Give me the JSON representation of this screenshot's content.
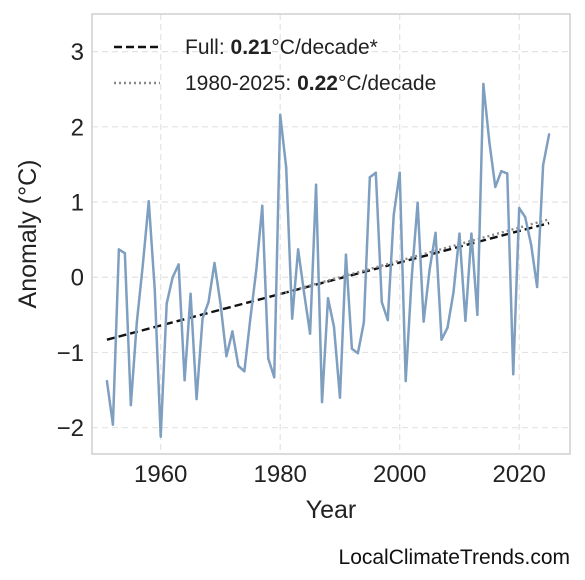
{
  "chart_data": {
    "type": "line",
    "xlabel": "Year",
    "ylabel": "Anomaly (°C)",
    "xlim": [
      1948.5,
      2028.5
    ],
    "ylim": [
      -2.35,
      3.5
    ],
    "xticks": [
      1960,
      1980,
      2000,
      2020
    ],
    "xtick_labels": [
      "1960",
      "1980",
      "2000",
      "2020"
    ],
    "yticks": [
      -2,
      -1,
      0,
      1,
      2,
      3
    ],
    "ytick_labels": [
      "−2",
      "−1",
      "0",
      "1",
      "2",
      "3"
    ],
    "grid": true,
    "legend_position": "top-left",
    "series": [
      {
        "color": "#7f9fc0",
        "x": [
          1951,
          1952,
          1953,
          1954,
          1955,
          1956,
          1957,
          1958,
          1959,
          1960,
          1961,
          1962,
          1963,
          1964,
          1965,
          1966,
          1967,
          1968,
          1969,
          1970,
          1971,
          1972,
          1973,
          1974,
          1975,
          1976,
          1977,
          1978,
          1979,
          1980,
          1981,
          1982,
          1983,
          1984,
          1985,
          1986,
          1987,
          1988,
          1989,
          1990,
          1991,
          1992,
          1993,
          1994,
          1995,
          1996,
          1997,
          1998,
          1999,
          2000,
          2001,
          2002,
          2003,
          2004,
          2005,
          2006,
          2007,
          2008,
          2009,
          2010,
          2011,
          2012,
          2013,
          2014,
          2015,
          2016,
          2017,
          2018,
          2019,
          2020,
          2021,
          2022,
          2023,
          2024,
          2025
        ],
        "values": [
          -1.38,
          -1.96,
          0.37,
          0.32,
          -1.7,
          -0.6,
          0.16,
          1.01,
          -0.16,
          -2.12,
          -0.35,
          0.0,
          0.17,
          -1.37,
          -0.22,
          -1.62,
          -0.55,
          -0.33,
          0.19,
          -0.35,
          -1.05,
          -0.72,
          -1.18,
          -1.25,
          -0.55,
          0.1,
          0.95,
          -1.08,
          -1.33,
          2.16,
          1.46,
          -0.55,
          0.37,
          -0.21,
          -0.75,
          1.23,
          -1.66,
          -0.28,
          -0.66,
          -1.6,
          0.3,
          -0.95,
          -1.01,
          -0.6,
          1.33,
          1.39,
          -0.33,
          -0.57,
          0.83,
          1.39,
          -1.38,
          -0.01,
          0.99,
          -0.59,
          0.1,
          0.59,
          -0.83,
          -0.67,
          -0.2,
          0.58,
          -0.58,
          0.58,
          -0.5,
          2.57,
          1.8,
          1.2,
          1.41,
          1.38,
          -1.29,
          0.92,
          0.8,
          0.43,
          -0.13,
          1.49,
          1.9
        ]
      }
    ],
    "trends": [
      {
        "name_plain": "Full: ",
        "name_bold": "0.21",
        "name_unit": "°C/decade*",
        "style": "dashed",
        "color": "#111111",
        "x": [
          1951,
          2025
        ],
        "y": [
          -0.83,
          0.72
        ]
      },
      {
        "name_plain": "1980-2025: ",
        "name_bold": "0.22",
        "name_unit": "°C/decade",
        "style": "dotted",
        "color": "#888888",
        "x": [
          1980,
          2025
        ],
        "y": [
          -0.22,
          0.77
        ]
      }
    ]
  },
  "watermark": "LocalClimateTrends.com"
}
